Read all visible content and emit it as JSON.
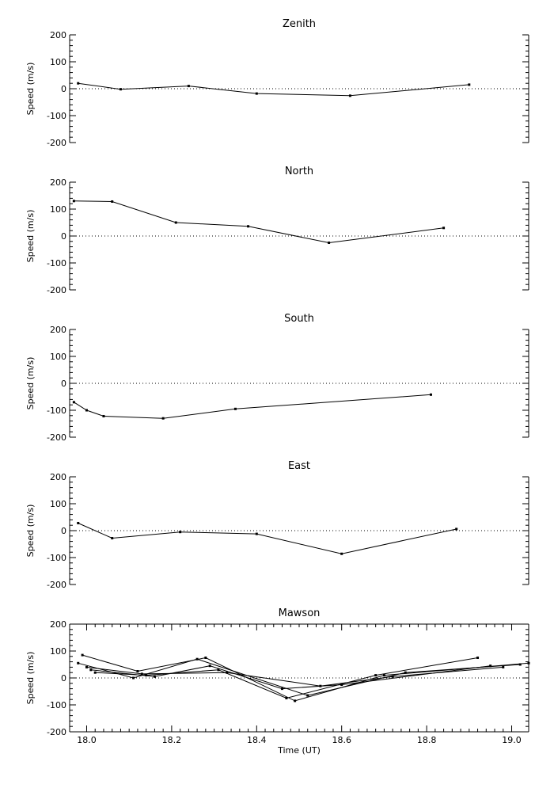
{
  "chart_data": [
    {
      "type": "line",
      "title": "Zenith",
      "ylabel": "Speed (m/s)",
      "xlim": [
        17.96,
        19.04
      ],
      "ylim": [
        -200,
        200
      ],
      "yticks": [
        -200,
        -100,
        0,
        100,
        200
      ],
      "zero_line": "dotted",
      "series": [
        {
          "x": [
            17.98,
            18.08,
            18.24,
            18.4,
            18.62,
            18.9
          ],
          "y": [
            20,
            -2,
            10,
            -18,
            -26,
            15
          ]
        }
      ]
    },
    {
      "type": "line",
      "title": "North",
      "ylabel": "Speed (m/s)",
      "xlim": [
        17.96,
        19.04
      ],
      "ylim": [
        -200,
        200
      ],
      "yticks": [
        -200,
        -100,
        0,
        100,
        200
      ],
      "zero_line": "dotted",
      "series": [
        {
          "x": [
            17.97,
            18.06,
            18.21,
            18.38,
            18.57,
            18.84
          ],
          "y": [
            130,
            128,
            50,
            36,
            -25,
            30
          ]
        }
      ]
    },
    {
      "type": "line",
      "title": "South",
      "ylabel": "Speed (m/s)",
      "xlim": [
        17.96,
        19.04
      ],
      "ylim": [
        -200,
        200
      ],
      "yticks": [
        -200,
        -100,
        0,
        100,
        200
      ],
      "zero_line": "dotted",
      "series": [
        {
          "x": [
            17.97,
            18.0,
            18.04,
            18.18,
            18.35,
            18.81
          ],
          "y": [
            -70,
            -100,
            -122,
            -130,
            -95,
            -42
          ]
        }
      ]
    },
    {
      "type": "line",
      "title": "East",
      "ylabel": "Speed (m/s)",
      "xlim": [
        17.96,
        19.04
      ],
      "ylim": [
        -200,
        200
      ],
      "yticks": [
        -200,
        -100,
        0,
        100,
        200
      ],
      "zero_line": "dotted",
      "series": [
        {
          "x": [
            17.98,
            18.06,
            18.22,
            18.4,
            18.6,
            18.87
          ],
          "y": [
            28,
            -28,
            -5,
            -12,
            -86,
            6
          ]
        }
      ]
    },
    {
      "type": "line",
      "title": "Mawson",
      "xlabel": "Time (UT)",
      "ylabel": "Speed (m/s)",
      "xlim": [
        17.96,
        19.04
      ],
      "ylim": [
        -200,
        200
      ],
      "yticks": [
        -200,
        -100,
        0,
        100,
        200
      ],
      "xticks": [
        "18.0",
        "18.2",
        "18.4",
        "18.6",
        "18.8",
        "19.0"
      ],
      "zero_line": "dotted",
      "series": [
        {
          "x": [
            17.99,
            18.12,
            18.28,
            18.49,
            18.7,
            19.04
          ],
          "y": [
            85,
            25,
            75,
            -85,
            10,
            55
          ]
        },
        {
          "x": [
            18.01,
            18.16,
            18.29,
            18.46,
            18.6,
            18.95
          ],
          "y": [
            30,
            5,
            45,
            -40,
            -25,
            45
          ]
        },
        {
          "x": [
            17.98,
            18.11,
            18.26,
            18.52,
            18.75,
            19.02
          ],
          "y": [
            55,
            0,
            70,
            -65,
            20,
            50
          ]
        },
        {
          "x": [
            18.02,
            18.14,
            18.31,
            18.47,
            18.68,
            18.92
          ],
          "y": [
            20,
            10,
            30,
            -75,
            10,
            75
          ]
        },
        {
          "x": [
            18.0,
            18.13,
            18.33,
            18.55,
            18.72,
            18.98
          ],
          "y": [
            40,
            15,
            20,
            -30,
            5,
            40
          ]
        }
      ]
    }
  ]
}
